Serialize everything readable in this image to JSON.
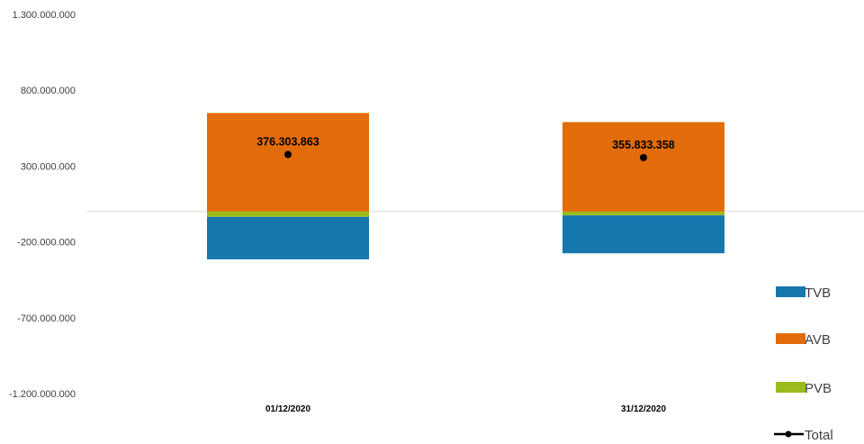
{
  "chart_data": {
    "type": "bar",
    "stacked": true,
    "categories": [
      "01/12/2020",
      "31/12/2020"
    ],
    "series": [
      {
        "name": "TVB",
        "color": "#1677ad",
        "values": [
          -280000000,
          -250000000
        ]
      },
      {
        "name": "AVB",
        "color": "#e36c0a",
        "values": [
          650000000,
          590000000
        ]
      },
      {
        "name": "PVB",
        "color": "#9bbb1a",
        "values": [
          -35000000,
          -25000000
        ]
      }
    ],
    "line_series": {
      "name": "Total",
      "color": "#000000",
      "values": [
        376303863,
        355833358
      ]
    },
    "data_labels": [
      "376.303.863",
      "355.833.358"
    ],
    "y_ticks": [
      "1.300.000.000",
      "800.000.000",
      "300.000.000",
      "-200.000.000",
      "-700.000.000",
      "-1.200.000.000"
    ],
    "y_tick_values": [
      1300000000,
      800000000,
      300000000,
      -200000000,
      -700000000,
      -1200000000
    ],
    "ylim": [
      -1200000000,
      1300000000
    ],
    "legend_position": "right",
    "grid": false
  }
}
